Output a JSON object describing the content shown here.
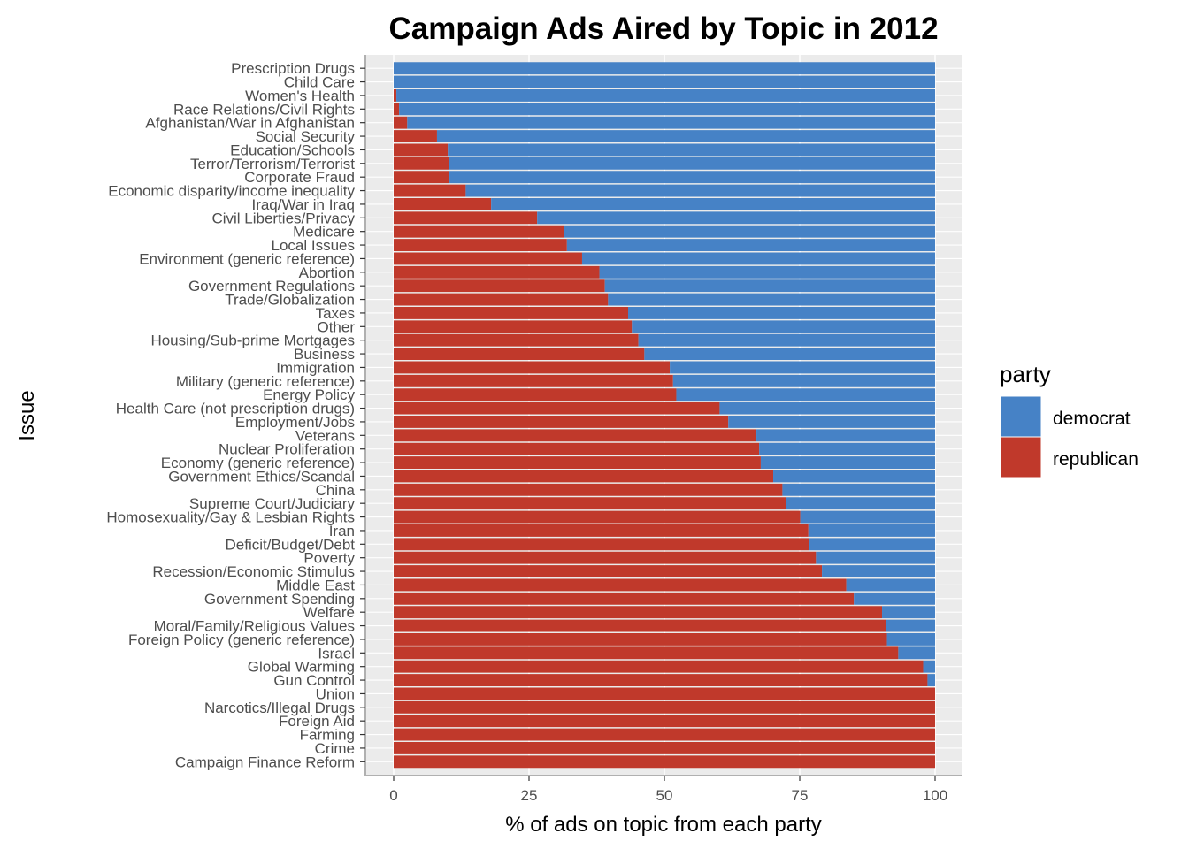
{
  "chart_data": {
    "type": "bar",
    "orientation": "horizontal",
    "stacked": true,
    "title": "Campaign Ads Aired by Topic in 2012",
    "xlabel": "% of ads on topic from each party",
    "ylabel": "Issue",
    "xlim": [
      0,
      100
    ],
    "x_ticks": [
      0,
      25,
      50,
      75,
      100
    ],
    "legend": {
      "title": "party",
      "position": "right"
    },
    "colors": {
      "democrat": "#4682c6",
      "republican": "#c0392b",
      "panel": "#ebebeb"
    },
    "categories": [
      "Prescription Drugs",
      "Child Care",
      "Women's Health",
      "Race Relations/Civil Rights",
      "Afghanistan/War in Afghanistan",
      "Social Security",
      "Education/Schools",
      "Terror/Terrorism/Terrorist",
      "Corporate Fraud",
      "Economic disparity/income inequality",
      "Iraq/War in Iraq",
      "Civil Liberties/Privacy",
      "Medicare",
      "Local Issues",
      "Environment (generic reference)",
      "Abortion",
      "Government Regulations",
      "Trade/Globalization",
      "Taxes",
      "Other",
      "Housing/Sub-prime Mortgages",
      "Business",
      "Immigration",
      "Military (generic reference)",
      "Energy Policy",
      "Health Care (not prescription drugs)",
      "Employment/Jobs",
      "Veterans",
      "Nuclear Proliferation",
      "Economy (generic reference)",
      "Government Ethics/Scandal",
      "China",
      "Supreme Court/Judiciary",
      "Homosexuality/Gay & Lesbian Rights",
      "Iran",
      "Deficit/Budget/Debt",
      "Poverty",
      "Recession/Economic Stimulus",
      "Middle East",
      "Government Spending",
      "Welfare",
      "Moral/Family/Religious Values",
      "Foreign Policy (generic reference)",
      "Israel",
      "Global Warming",
      "Gun Control",
      "Union",
      "Narcotics/Illegal Drugs",
      "Foreign Aid",
      "Farming",
      "Crime",
      "Campaign Finance Reform"
    ],
    "series": [
      {
        "name": "republican",
        "values": [
          0,
          0,
          0.5,
          1,
          2.5,
          8,
          10,
          10.2,
          10.3,
          13.3,
          18,
          26.5,
          31.5,
          32,
          34.8,
          38,
          39,
          39.6,
          43.3,
          44,
          45.2,
          46.3,
          51,
          51.6,
          52.2,
          60.2,
          61.8,
          67,
          67.5,
          67.8,
          70.1,
          71.8,
          72.5,
          75.1,
          76.6,
          76.8,
          78,
          79.1,
          83.6,
          85,
          90.2,
          91,
          91.1,
          93.2,
          97.8,
          98.6,
          100,
          100,
          100,
          100,
          100,
          100
        ]
      },
      {
        "name": "democrat",
        "values": [
          100,
          100,
          99.5,
          99,
          97.5,
          92,
          90,
          89.8,
          89.7,
          86.7,
          82,
          73.5,
          68.5,
          68,
          65.2,
          62,
          61,
          60.4,
          56.7,
          56,
          54.8,
          53.7,
          49,
          48.4,
          47.8,
          39.8,
          38.2,
          33,
          32.5,
          32.2,
          29.9,
          28.2,
          27.5,
          24.9,
          23.4,
          23.2,
          22,
          20.9,
          16.4,
          15,
          9.8,
          9,
          8.9,
          6.8,
          2.2,
          1.4,
          0,
          0,
          0,
          0,
          0,
          0
        ]
      }
    ]
  }
}
